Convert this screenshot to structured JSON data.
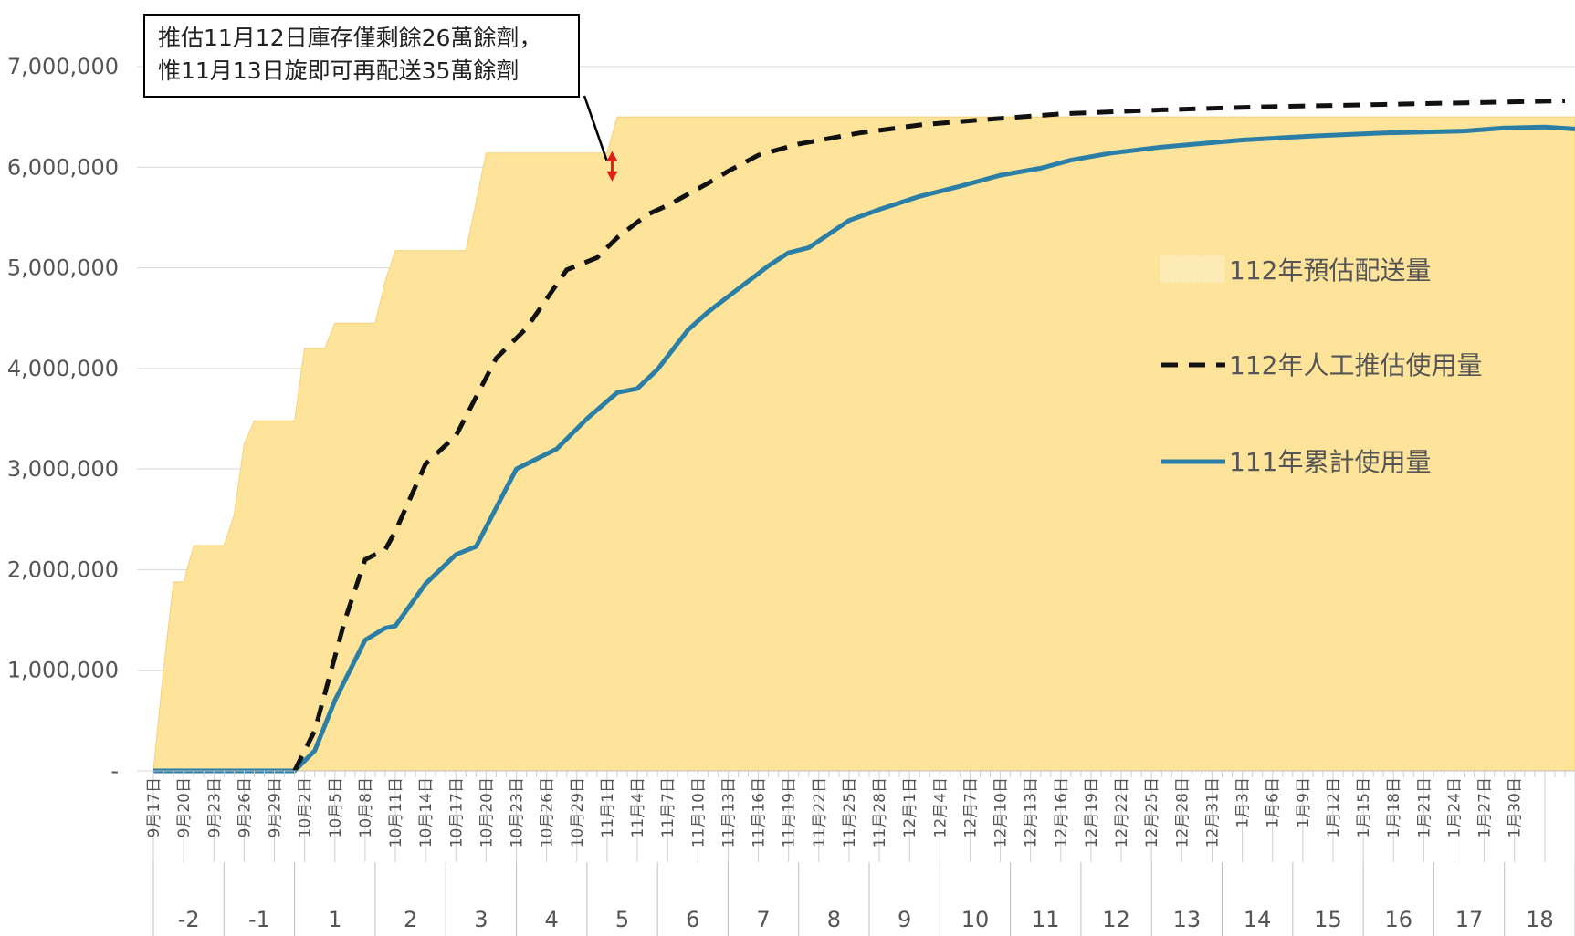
{
  "chart_data": {
    "type": "area",
    "y_ticks": [
      "7,000,000",
      "6,000,000",
      "5,000,000",
      "4,000,000",
      "3,000,000",
      "2,000,000",
      "1,000,000",
      "-"
    ],
    "ylim": [
      0,
      7000000
    ],
    "x_date_labels": [
      "9月17日",
      "9月20日",
      "9月23日",
      "9月26日",
      "9月29日",
      "10月2日",
      "10月5日",
      "10月8日",
      "10月11日",
      "10月14日",
      "10月17日",
      "10月20日",
      "10月23日",
      "10月26日",
      "10月29日",
      "11月1日",
      "11月4日",
      "11月7日",
      "11月10日",
      "11月13日",
      "11月16日",
      "11月19日",
      "11月22日",
      "11月25日",
      "11月28日",
      "12月1日",
      "12月4日",
      "12月7日",
      "12月10日",
      "12月13日",
      "12月16日",
      "12月19日",
      "12月22日",
      "12月25日",
      "12月28日",
      "12月31日",
      "1月3日",
      "1月6日",
      "1月9日",
      "1月12日",
      "1月15日",
      "1月18日",
      "1月21日",
      "1月24日",
      "1月27日",
      "1月30日"
    ],
    "week_labels": [
      "-2",
      "-1",
      "1",
      "2",
      "3",
      "4",
      "5",
      "6",
      "7",
      "8",
      "9",
      "10",
      "11",
      "12",
      "13",
      "14",
      "15",
      "16",
      "17",
      "18"
    ],
    "annotation": {
      "line1": "推估11月12日庫存僅剩餘26萬餘劑，",
      "line2": "惟11月13日旋即可再配送35萬餘劑"
    },
    "series": [
      {
        "name": "112年預估配送量",
        "style": "area",
        "color": "#fde49a",
        "points": [
          [
            0,
            0
          ],
          [
            1,
            1000000
          ],
          [
            2,
            1880000
          ],
          [
            3,
            1880000
          ],
          [
            4,
            2240000
          ],
          [
            7,
            2240000
          ],
          [
            8,
            2540000
          ],
          [
            9,
            3250000
          ],
          [
            10,
            3480000
          ],
          [
            14,
            3480000
          ],
          [
            15,
            4200000
          ],
          [
            17,
            4200000
          ],
          [
            18,
            4450000
          ],
          [
            22,
            4450000
          ],
          [
            23,
            4870000
          ],
          [
            24,
            5170000
          ],
          [
            31,
            5170000
          ],
          [
            32,
            5650000
          ],
          [
            33,
            6140000
          ],
          [
            45,
            6140000
          ],
          [
            46,
            6500000
          ],
          [
            60,
            6500000
          ],
          [
            141,
            6500000
          ]
        ]
      },
      {
        "name": "112年人工推估使用量",
        "style": "dashed",
        "color": "#111111",
        "points": [
          [
            14,
            0
          ],
          [
            16,
            400000
          ],
          [
            19,
            1500000
          ],
          [
            21,
            2100000
          ],
          [
            23,
            2200000
          ],
          [
            24,
            2380000
          ],
          [
            27,
            3050000
          ],
          [
            30,
            3330000
          ],
          [
            34,
            4100000
          ],
          [
            37,
            4400000
          ],
          [
            41,
            4980000
          ],
          [
            44,
            5100000
          ],
          [
            46,
            5300000
          ],
          [
            49,
            5530000
          ],
          [
            51,
            5620000
          ],
          [
            55,
            5840000
          ],
          [
            57,
            5960000
          ],
          [
            60,
            6120000
          ],
          [
            64,
            6230000
          ],
          [
            70,
            6340000
          ],
          [
            76,
            6420000
          ],
          [
            82,
            6470000
          ],
          [
            90,
            6530000
          ],
          [
            100,
            6570000
          ],
          [
            110,
            6600000
          ],
          [
            120,
            6620000
          ],
          [
            130,
            6640000
          ],
          [
            140,
            6660000
          ]
        ]
      },
      {
        "name": "111年累計使用量",
        "style": "solid",
        "color": "#2b7ea5",
        "points": [
          [
            0,
            0
          ],
          [
            14,
            0
          ],
          [
            16,
            200000
          ],
          [
            18,
            700000
          ],
          [
            21,
            1300000
          ],
          [
            23,
            1420000
          ],
          [
            24,
            1440000
          ],
          [
            27,
            1860000
          ],
          [
            30,
            2150000
          ],
          [
            32,
            2230000
          ],
          [
            36,
            3000000
          ],
          [
            38,
            3100000
          ],
          [
            40,
            3200000
          ],
          [
            43,
            3500000
          ],
          [
            46,
            3760000
          ],
          [
            48,
            3800000
          ],
          [
            50,
            3990000
          ],
          [
            53,
            4380000
          ],
          [
            55,
            4560000
          ],
          [
            58,
            4790000
          ],
          [
            61,
            5020000
          ],
          [
            63,
            5150000
          ],
          [
            65,
            5200000
          ],
          [
            69,
            5470000
          ],
          [
            72,
            5580000
          ],
          [
            76,
            5710000
          ],
          [
            80,
            5810000
          ],
          [
            84,
            5920000
          ],
          [
            88,
            5990000
          ],
          [
            91,
            6070000
          ],
          [
            95,
            6140000
          ],
          [
            100,
            6200000
          ],
          [
            108,
            6270000
          ],
          [
            115,
            6310000
          ],
          [
            122,
            6340000
          ],
          [
            130,
            6360000
          ],
          [
            134,
            6390000
          ],
          [
            138,
            6400000
          ],
          [
            141,
            6380000
          ]
        ]
      }
    ]
  }
}
